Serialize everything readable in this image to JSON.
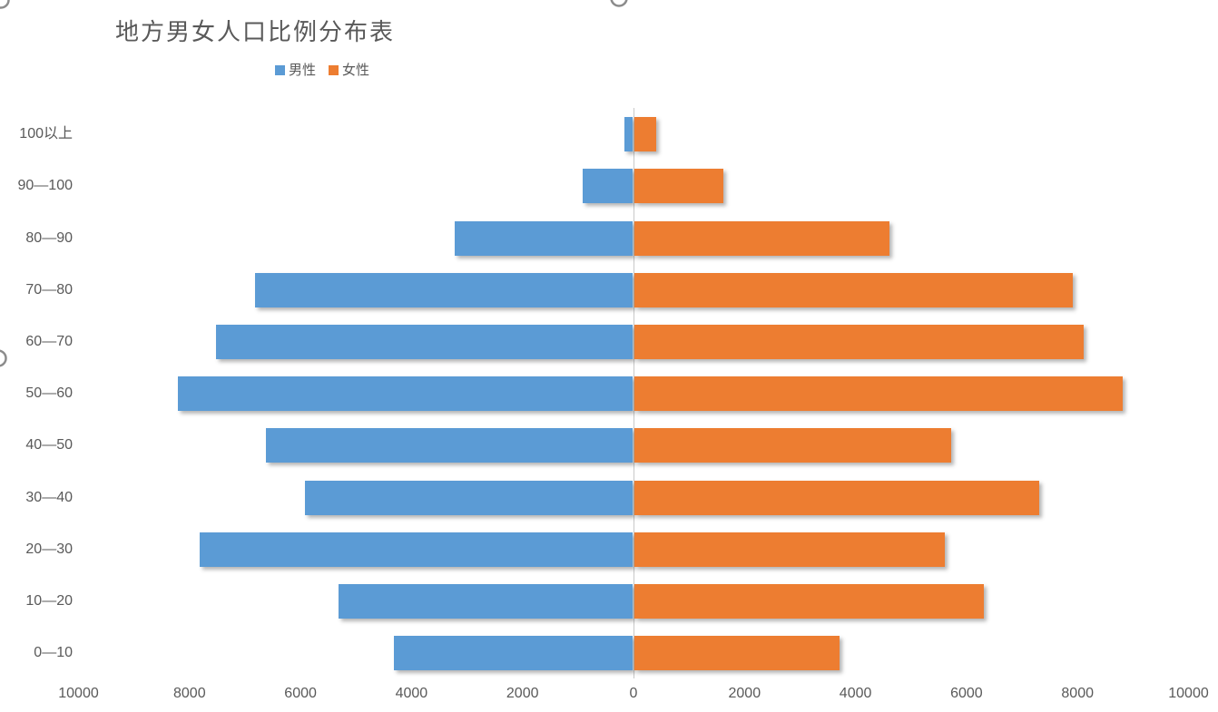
{
  "title": "地方男女人口比例分布表",
  "legend": {
    "items": [
      {
        "label": "男性",
        "color": "#5B9BD5"
      },
      {
        "label": "女性",
        "color": "#ED7D31"
      }
    ]
  },
  "colors": {
    "male": "#5B9BD5",
    "female": "#ED7D31",
    "text": "#595959",
    "axis_line": "#c9c9c9",
    "selection_handle": "#8c8c8c"
  },
  "chart_data": {
    "type": "bar",
    "subtype": "diverging-horizontal-population-pyramid",
    "title": "地方男女人口比例分布表",
    "legend_entries": [
      "男性",
      "女性"
    ],
    "legend_position": "top",
    "grid": false,
    "categories": [
      "100以上",
      "90—100",
      "80—90",
      "70—80",
      "60—70",
      "50—60",
      "40—50",
      "30—40",
      "20—30",
      "10—20",
      "0—10"
    ],
    "series": [
      {
        "name": "男性",
        "side": "left",
        "color": "#5B9BD5",
        "values": [
          150,
          900,
          3200,
          6800,
          7500,
          8200,
          6600,
          5900,
          7800,
          5300,
          4300
        ]
      },
      {
        "name": "女性",
        "side": "right",
        "color": "#ED7D31",
        "values": [
          400,
          1600,
          4600,
          7900,
          8100,
          8800,
          5700,
          7300,
          5600,
          6300,
          3700
        ]
      }
    ],
    "x_axis": {
      "tick_labels": [
        "10000",
        "8000",
        "6000",
        "4000",
        "2000",
        "0",
        "2000",
        "4000",
        "6000",
        "8000",
        "10000"
      ],
      "tick_step": 2000,
      "max_each_side": 10000
    }
  }
}
